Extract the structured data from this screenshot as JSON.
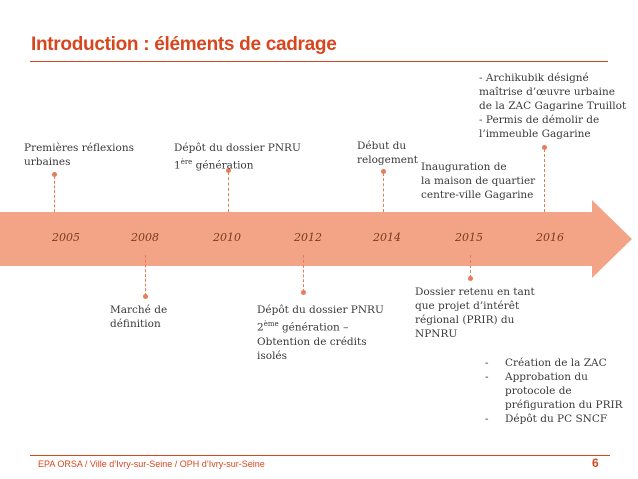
{
  "slide": {
    "title": "Introduction : éléments de cadrage",
    "footer": "EPA ORSA / Ville d’Ivry-sur-Seine / OPH d’Ivry-sur-Seine",
    "page_number": "6",
    "accent_color": "#d8461e",
    "arrow_color": "#f4a486"
  },
  "timeline": {
    "years": [
      "2005",
      "2008",
      "2010",
      "2012",
      "2014",
      "2015",
      "2016"
    ]
  },
  "events": {
    "e2005": [
      "Premières réflexions",
      "urbaines"
    ],
    "e2008": [
      "Marché de",
      "définition"
    ],
    "e2010": {
      "line1a": "Dépôt du dossier PNRU",
      "line2_pre": "1",
      "line2_sup": "ère",
      "line2_post": " génération"
    },
    "e2012": {
      "line1": "Dépôt du dossier PNRU",
      "line2_pre": "2",
      "line2_sup": "ème",
      "line2_post": " génération –",
      "line3": "Obtention de crédits",
      "line4": "isolés"
    },
    "e2014": [
      "Début du",
      "relogement"
    ],
    "e2015_top": [
      "Inauguration de",
      "la maison de quartier",
      "centre-ville Gagarine"
    ],
    "e2015_bottom": [
      "Dossier retenu en tant",
      "que projet d’intérêt",
      "régional (PRIR) du",
      "NPNRU"
    ],
    "e2016_top": [
      "- Archikubik désigné",
      "maîtrise d’œuvre urbaine",
      "de la ZAC Gagarine Truillot",
      "- Permis de démolir de",
      "l’immeuble Gagarine"
    ],
    "e2016_bottom": {
      "dash": "-",
      "items": [
        "Création de la ZAC",
        "Approbation du",
        "protocole de",
        "préfiguration du PRIR",
        "Dépôt du PC SNCF"
      ]
    }
  }
}
